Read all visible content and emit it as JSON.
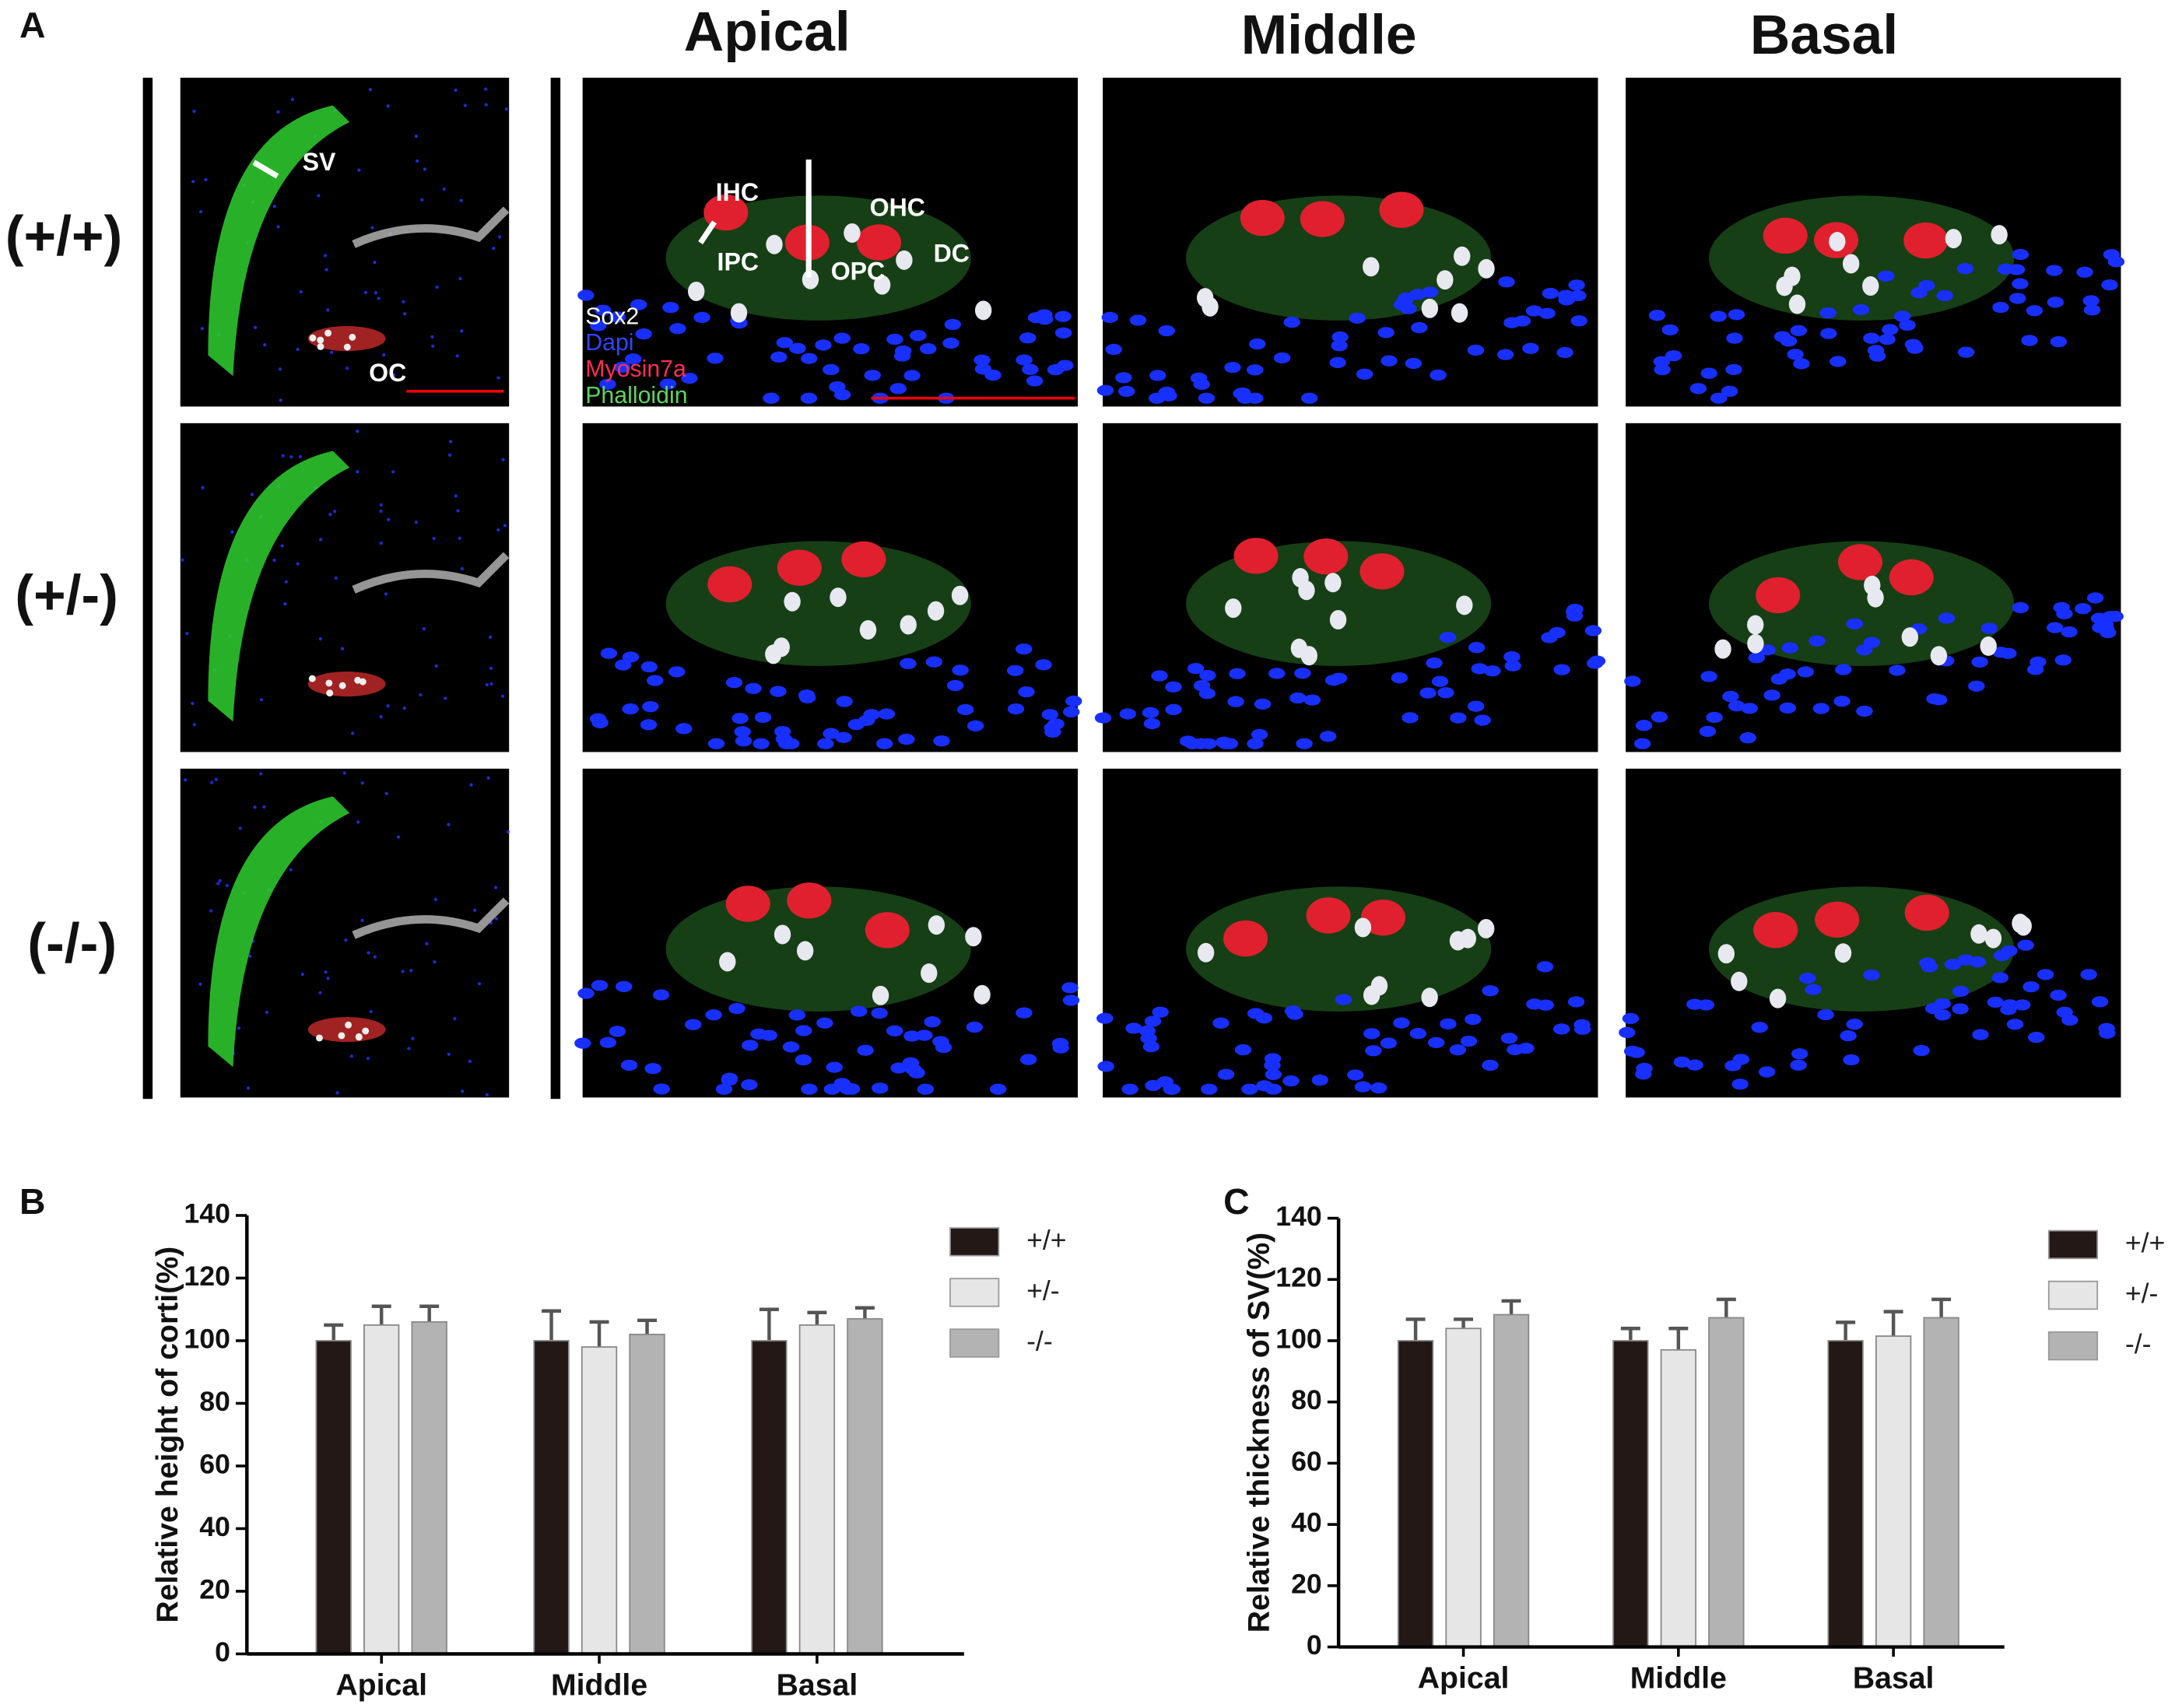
{
  "figure": {
    "panel_labels": [
      "A",
      "B",
      "C"
    ],
    "column_headers": [
      "Apical",
      "Middle",
      "Basal"
    ],
    "row_labels": [
      "(+/+)",
      "(+/-)",
      "(-/-)"
    ],
    "overview_labels": [
      "SV",
      "OC"
    ],
    "cell_labels": [
      "IHC",
      "IPC",
      "OHC",
      "OPC",
      "DC"
    ],
    "stain_legend": [
      "Sox2",
      "Dapi",
      "Myosin7a",
      "Phalloidin"
    ]
  },
  "chart_data": [
    {
      "type": "bar",
      "y_label": "Relative height of corti(%)",
      "categories": [
        "Apical",
        "Middle",
        "Basal"
      ],
      "series": [
        {
          "name": "+/+",
          "color": "#231816",
          "values": [
            100,
            100,
            100
          ],
          "errors": [
            5,
            9.5,
            10
          ]
        },
        {
          "name": "+/-",
          "color": "#e6e6e6",
          "values": [
            105,
            98,
            105
          ],
          "errors": [
            6,
            8,
            4
          ]
        },
        {
          "name": "-/-",
          "color": "#b3b3b3",
          "values": [
            106,
            102,
            107
          ],
          "errors": [
            5,
            4.5,
            3.5
          ]
        }
      ],
      "ylim": [
        0,
        140
      ],
      "yticks": [
        0,
        20,
        40,
        60,
        80,
        100,
        120,
        140
      ]
    },
    {
      "type": "bar",
      "y_label": "Relative thickness of SV(%)",
      "categories": [
        "Apical",
        "Middle",
        "Basal"
      ],
      "series": [
        {
          "name": "+/+",
          "color": "#231816",
          "values": [
            100,
            100,
            100
          ],
          "errors": [
            7,
            4,
            6
          ]
        },
        {
          "name": "+/-",
          "color": "#e6e6e6",
          "values": [
            104,
            97,
            101.5
          ],
          "errors": [
            3,
            7,
            8
          ]
        },
        {
          "name": "-/-",
          "color": "#b3b3b3",
          "values": [
            108.5,
            107.5,
            107.5
          ],
          "errors": [
            4.5,
            6,
            6
          ]
        }
      ],
      "ylim": [
        0,
        140
      ],
      "yticks": [
        0,
        20,
        40,
        60,
        80,
        100,
        120,
        140
      ]
    }
  ]
}
